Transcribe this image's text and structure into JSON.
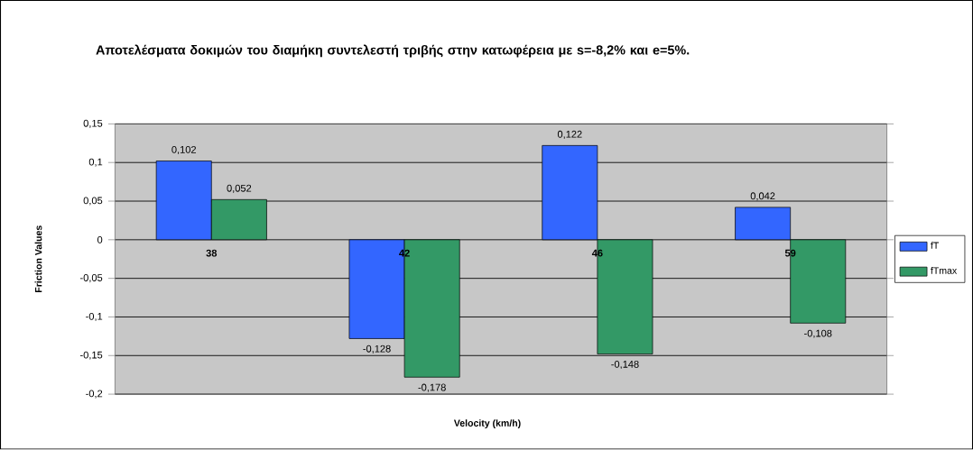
{
  "chart_data": {
    "type": "bar",
    "title": "Αποτελέσματα δοκιμών του διαμήκη συντελεστή τριβής στην κατωφέρεια με s=-8,2% και e=5%.",
    "xlabel": "Velocity (km/h)",
    "ylabel": "Friction Values",
    "categories": [
      "38",
      "42",
      "46",
      "59"
    ],
    "series": [
      {
        "name": "fT",
        "color": "#3366ff",
        "values": [
          0.102,
          -0.128,
          0.122,
          0.042
        ],
        "value_labels": [
          "0,102",
          "-0,128",
          "0,122",
          "0,042"
        ]
      },
      {
        "name": "fTmax",
        "color": "#339966",
        "values": [
          0.052,
          -0.178,
          -0.148,
          -0.108
        ],
        "value_labels": [
          "0,052",
          "-0,178",
          "-0,148",
          "-0,108"
        ]
      }
    ],
    "ylim": [
      -0.2,
      0.15
    ],
    "yticks": [
      {
        "value": -0.2,
        "label": "-0,2"
      },
      {
        "value": -0.15,
        "label": "-0,15"
      },
      {
        "value": -0.1,
        "label": "-0,1"
      },
      {
        "value": -0.05,
        "label": "-0,05"
      },
      0,
      {
        "value": 0.05,
        "label": "0,05"
      },
      {
        "value": 0.1,
        "label": "0,1"
      },
      {
        "value": 0.15,
        "label": "0,15"
      }
    ],
    "grid": "y",
    "legend": "right"
  }
}
